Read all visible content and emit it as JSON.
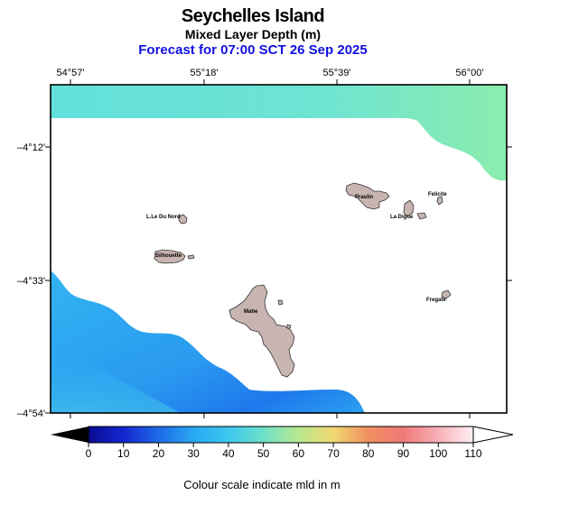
{
  "title": "Seychelles Island",
  "subtitle": "Mixed Layer Depth (m)",
  "forecast": "Forecast for  07:00 SCT 26 Sep 2025",
  "lon_ticks": [
    "54°57'",
    "55°18'",
    "55°39'",
    "56°00'"
  ],
  "lat_ticks": [
    "–4°12'",
    "–4°33'",
    "–4°54'"
  ],
  "islands": {
    "lile_du_nord": "L.Le Du Nord",
    "silhouette": "Silhouette",
    "praslin": "Praslin",
    "felicite": "Felicite",
    "la_digue": "La Digue",
    "fregate": "Fregate",
    "mahe": "Mahe"
  },
  "colorbar": {
    "ticks": [
      "0",
      "10",
      "20",
      "30",
      "40",
      "50",
      "60",
      "70",
      "80",
      "90",
      "100",
      "110"
    ],
    "caption": "Colour scale indicate mld in m",
    "colors": [
      "#0a0a90",
      "#1428d0",
      "#1e6ae8",
      "#29a8f2",
      "#3cc8f0",
      "#6ee0c8",
      "#b8e890",
      "#f0d870",
      "#f09060",
      "#f07878",
      "#f8b0b8",
      "#fff0f4"
    ]
  }
}
